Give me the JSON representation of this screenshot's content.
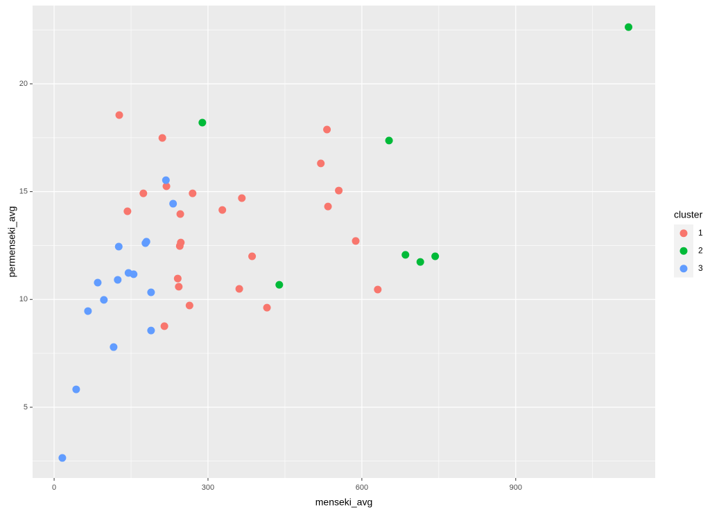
{
  "chart_data": {
    "type": "scatter",
    "x_label": "menseki_avg",
    "y_label": "permenseki_avg",
    "legend_title": "cluster",
    "legend_position": "right",
    "grid": true,
    "xlim": [
      -42,
      1172
    ],
    "ylim": [
      1.72,
      23.63
    ],
    "xticks": [
      0,
      300,
      600,
      900
    ],
    "yticks": [
      5,
      10,
      15,
      20
    ],
    "series": [
      {
        "name": "1",
        "color": "#F8766D",
        "x": [
          127,
          211,
          532,
          520,
          555,
          534,
          219,
          270,
          174,
          143,
          328,
          366,
          246,
          247,
          245,
          588,
          386,
          241,
          243,
          361,
          631,
          264,
          415,
          215
        ],
        "y": [
          18.55,
          17.49,
          17.88,
          16.31,
          15.05,
          14.31,
          15.25,
          14.92,
          14.92,
          14.09,
          14.15,
          14.7,
          13.96,
          12.64,
          12.48,
          12.71,
          12.0,
          10.97,
          10.59,
          10.49,
          10.46,
          9.72,
          9.62,
          8.76
        ]
      },
      {
        "name": "2",
        "color": "#00BA38",
        "x": [
          1120,
          289,
          653,
          685,
          714,
          743,
          439
        ],
        "y": [
          22.63,
          18.2,
          17.37,
          12.07,
          11.74,
          12.0,
          10.68
        ]
      },
      {
        "name": "3",
        "color": "#619CFF",
        "x": [
          218,
          232,
          126,
          180,
          178,
          145,
          155,
          124,
          85,
          189,
          97,
          66,
          189,
          116,
          43,
          16
        ],
        "y": [
          15.53,
          14.44,
          12.45,
          12.68,
          12.61,
          11.23,
          11.17,
          10.91,
          10.78,
          10.33,
          9.98,
          9.46,
          8.56,
          7.79,
          5.83,
          2.65
        ]
      }
    ]
  }
}
